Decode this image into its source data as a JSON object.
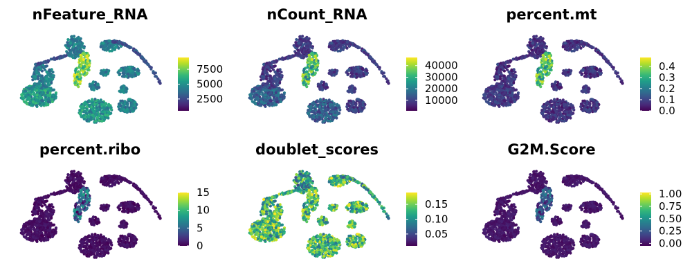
{
  "colors": {
    "background": "#ffffff",
    "viridis": [
      "#440154",
      "#482878",
      "#3e4989",
      "#31688e",
      "#26828e",
      "#1f9e89",
      "#35b779",
      "#6ece58",
      "#b5de2b",
      "#fde725"
    ]
  },
  "chart_data": [
    {
      "type": "scatter",
      "title": "nFeature_RNA",
      "xlabel": "",
      "ylabel": "",
      "color_scale": "viridis",
      "scale_range": [
        500,
        9500
      ],
      "colorbar_ticks": [
        {
          "value": 2500,
          "label": "2500"
        },
        {
          "value": 5000,
          "label": "5000"
        },
        {
          "value": 7500,
          "label": "7500"
        }
      ],
      "pattern": "nFeature",
      "grid": false,
      "legend": "right colorbar"
    },
    {
      "type": "scatter",
      "title": "nCount_RNA",
      "xlabel": "",
      "ylabel": "",
      "color_scale": "viridis",
      "scale_range": [
        1000,
        47000
      ],
      "colorbar_ticks": [
        {
          "value": 10000,
          "label": "10000"
        },
        {
          "value": 20000,
          "label": "20000"
        },
        {
          "value": 30000,
          "label": "30000"
        },
        {
          "value": 40000,
          "label": "40000"
        }
      ],
      "pattern": "nCount",
      "grid": false,
      "legend": "right colorbar"
    },
    {
      "type": "scatter",
      "title": "percent.mt",
      "xlabel": "",
      "ylabel": "",
      "color_scale": "viridis",
      "scale_range": [
        0,
        0.48
      ],
      "colorbar_ticks": [
        {
          "value": 0.0,
          "label": "0.0"
        },
        {
          "value": 0.1,
          "label": "0.1"
        },
        {
          "value": 0.2,
          "label": "0.2"
        },
        {
          "value": 0.3,
          "label": "0.3"
        },
        {
          "value": 0.4,
          "label": "0.4"
        }
      ],
      "pattern": "mt",
      "grid": false,
      "legend": "right colorbar"
    },
    {
      "type": "scatter",
      "title": "percent.ribo",
      "xlabel": "",
      "ylabel": "",
      "color_scale": "viridis",
      "scale_range": [
        0,
        15
      ],
      "colorbar_ticks": [
        {
          "value": 0,
          "label": "0"
        },
        {
          "value": 5,
          "label": "5"
        },
        {
          "value": 10,
          "label": "10"
        },
        {
          "value": 15,
          "label": "15"
        }
      ],
      "pattern": "ribo",
      "grid": false,
      "legend": "right colorbar"
    },
    {
      "type": "scatter",
      "title": "doublet_scores",
      "xlabel": "",
      "ylabel": "",
      "color_scale": "viridis",
      "scale_range": [
        0.01,
        0.19
      ],
      "colorbar_ticks": [
        {
          "value": 0.05,
          "label": "0.05"
        },
        {
          "value": 0.1,
          "label": "0.10"
        },
        {
          "value": 0.15,
          "label": "0.15"
        }
      ],
      "pattern": "doublet",
      "grid": false,
      "legend": "right colorbar"
    },
    {
      "type": "scatter",
      "title": "G2M.Score",
      "xlabel": "",
      "ylabel": "",
      "color_scale": "viridis",
      "scale_range": [
        -0.05,
        1.03
      ],
      "colorbar_ticks": [
        {
          "value": 0.0,
          "label": "0.00"
        },
        {
          "value": 0.25,
          "label": "0.25"
        },
        {
          "value": 0.5,
          "label": "0.50"
        },
        {
          "value": 0.75,
          "label": "0.75"
        },
        {
          "value": 1.0,
          "label": "1.00"
        }
      ],
      "pattern": "g2m",
      "grid": false,
      "legend": "right colorbar"
    }
  ]
}
